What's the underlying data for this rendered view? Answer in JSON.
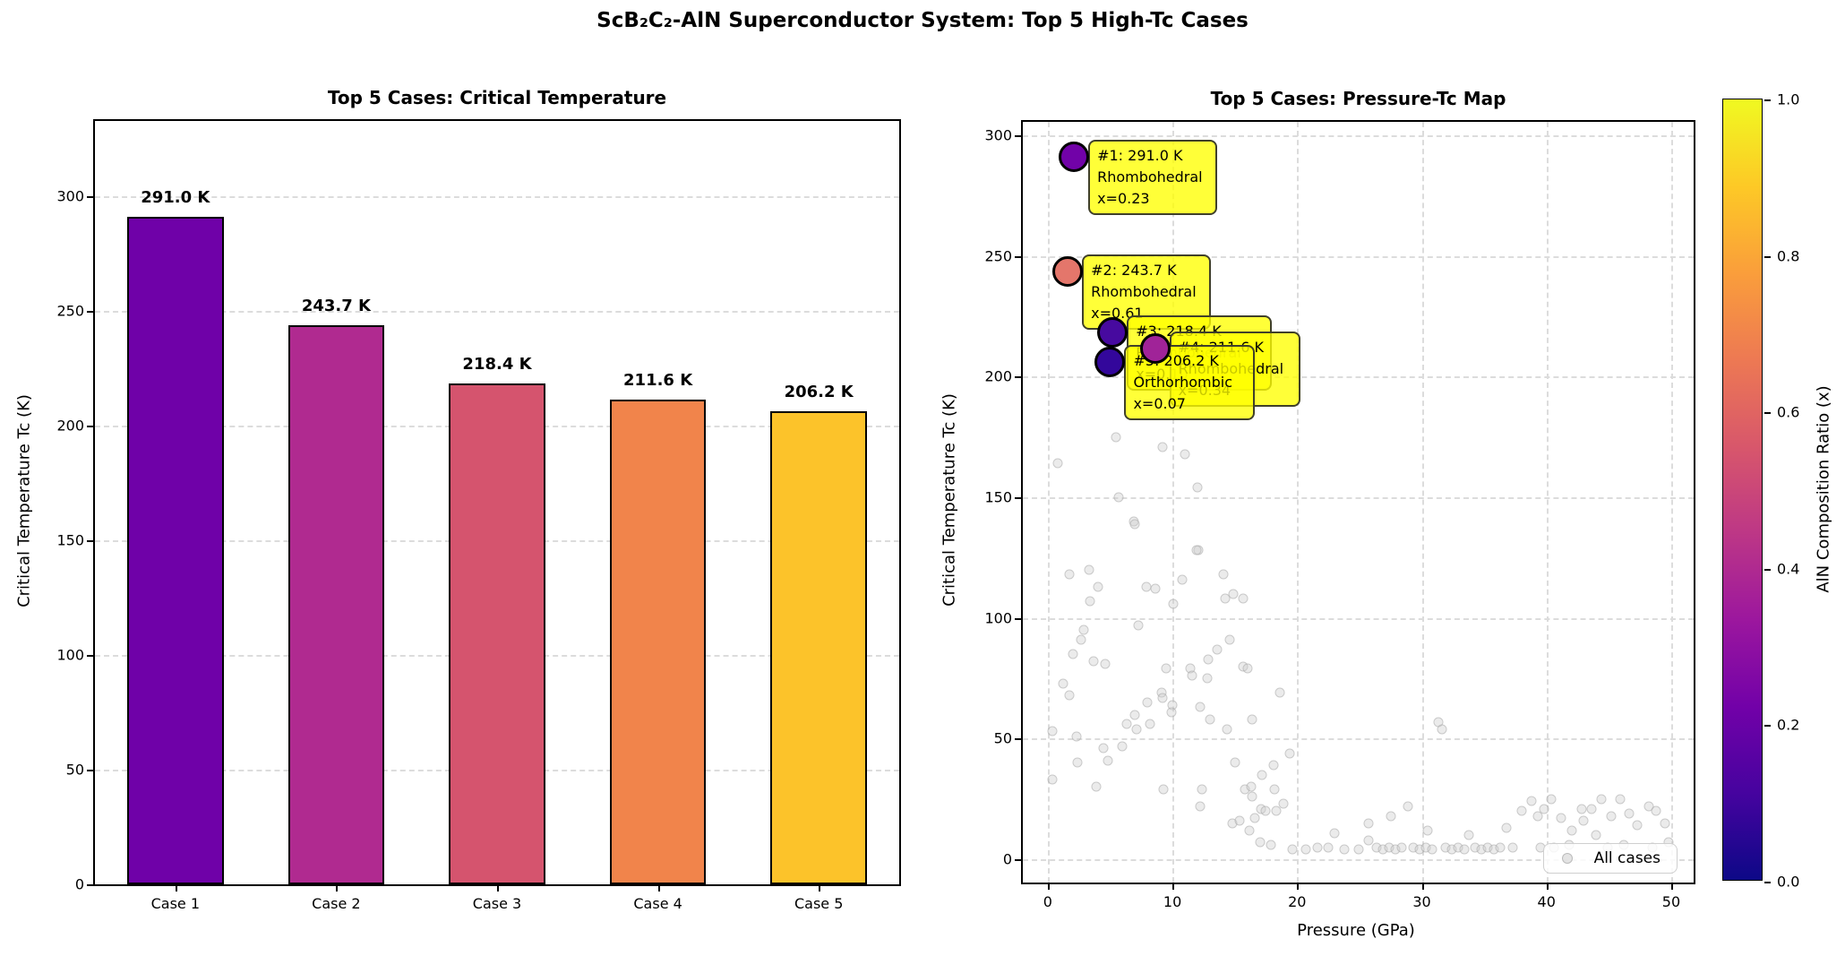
{
  "suptitle": "ScB₂C₂-AlN Superconductor System: Top 5 High-Tc Cases",
  "chart_data": [
    {
      "type": "bar",
      "title": "Top 5 Cases: Critical Temperature",
      "ylabel": "Critical Temperature Tc (K)",
      "categories": [
        "Case 1",
        "Case 2",
        "Case 3",
        "Case 4",
        "Case 5"
      ],
      "values": [
        291.0,
        243.7,
        218.4,
        211.6,
        206.2
      ],
      "value_labels": [
        "291.0 K",
        "243.7 K",
        "218.4 K",
        "211.6 K",
        "206.2 K"
      ],
      "bar_colors": [
        "#6f01a8",
        "#b02a90",
        "#d5546e",
        "#f1844b",
        "#fcc32a"
      ],
      "yticks": [
        0,
        50,
        100,
        150,
        200,
        250,
        300
      ],
      "ylim": [
        0,
        333
      ],
      "grid": "dashed horizontal"
    },
    {
      "type": "scatter",
      "title": "Top 5 Cases: Pressure-Tc Map",
      "xlabel": "Pressure (GPa)",
      "ylabel": "Critical Temperature Tc (K)",
      "xticks": [
        0,
        10,
        20,
        30,
        40,
        50
      ],
      "yticks": [
        0,
        50,
        100,
        150,
        200,
        250,
        300
      ],
      "xlim": [
        -2.0,
        51.8
      ],
      "ylim": [
        -9.6,
        305.6
      ],
      "grid": "dashed both",
      "legend": {
        "label": "All cases",
        "position": "lower right"
      },
      "highlights": [
        {
          "rank": 1,
          "pressure_gpa": 2.1,
          "tc_k": 291.0,
          "marker_color": "#7102a8",
          "annotation_lines": [
            "#1: 291.0 K",
            "Rhombohedral",
            "x=0.23"
          ]
        },
        {
          "rank": 2,
          "pressure_gpa": 1.6,
          "tc_k": 243.7,
          "marker_color": "#e4766b",
          "annotation_lines": [
            "#2: 243.7 K",
            "Rhombohedral",
            "x=0.61"
          ]
        },
        {
          "rank": 3,
          "pressure_gpa": 5.2,
          "tc_k": 218.4,
          "marker_color": "#470a9f",
          "annotation_lines": [
            "#3: 218.4 K",
            "Rhombohedral",
            "x=0.10"
          ]
        },
        {
          "rank": 4,
          "pressure_gpa": 8.6,
          "tc_k": 211.6,
          "marker_color": "#a02398",
          "annotation_lines": [
            "#4: 211.6 K",
            "Rhombohedral",
            "x=0.34"
          ]
        },
        {
          "rank": 5,
          "pressure_gpa": 5.0,
          "tc_k": 206.2,
          "marker_color": "#33079b",
          "annotation_lines": [
            "#5: 206.2 K",
            "Orthorhombic",
            "x=0.07"
          ]
        }
      ],
      "background_points": [
        [
          5.5,
          175
        ],
        [
          9.2,
          171
        ],
        [
          11.0,
          168
        ],
        [
          0.8,
          164
        ],
        [
          12.0,
          154
        ],
        [
          5.7,
          150
        ],
        [
          6.9,
          140
        ],
        [
          7.0,
          139
        ],
        [
          12.1,
          128
        ],
        [
          11.9,
          128
        ],
        [
          1.7,
          118
        ],
        [
          3.3,
          120
        ],
        [
          4.0,
          113
        ],
        [
          3.4,
          107
        ],
        [
          7.9,
          113
        ],
        [
          8.6,
          112
        ],
        [
          10.8,
          116
        ],
        [
          14.1,
          118
        ],
        [
          14.2,
          108
        ],
        [
          14.9,
          110
        ],
        [
          15.7,
          108
        ],
        [
          10.1,
          106
        ],
        [
          7.3,
          97
        ],
        [
          2.9,
          95
        ],
        [
          2.7,
          91
        ],
        [
          2.0,
          85
        ],
        [
          3.7,
          82
        ],
        [
          4.6,
          81
        ],
        [
          9.5,
          79
        ],
        [
          11.4,
          79
        ],
        [
          11.6,
          76
        ],
        [
          12.9,
          83
        ],
        [
          13.6,
          87
        ],
        [
          14.6,
          91
        ],
        [
          15.7,
          80
        ],
        [
          16.0,
          79
        ],
        [
          12.8,
          75
        ],
        [
          1.2,
          73
        ],
        [
          1.7,
          68
        ],
        [
          9.1,
          69
        ],
        [
          9.2,
          67
        ],
        [
          10.0,
          64
        ],
        [
          9.9,
          61
        ],
        [
          8.0,
          65
        ],
        [
          7.0,
          60
        ],
        [
          6.3,
          56
        ],
        [
          7.1,
          54
        ],
        [
          8.2,
          56
        ],
        [
          12.2,
          63
        ],
        [
          13.0,
          58
        ],
        [
          14.4,
          54
        ],
        [
          16.4,
          58
        ],
        [
          18.6,
          69
        ],
        [
          0.4,
          53
        ],
        [
          2.3,
          51
        ],
        [
          4.5,
          46
        ],
        [
          4.8,
          41
        ],
        [
          6.0,
          47
        ],
        [
          2.4,
          40
        ],
        [
          0.4,
          33
        ],
        [
          3.9,
          30
        ],
        [
          9.3,
          29
        ],
        [
          12.4,
          29
        ],
        [
          12.2,
          22
        ],
        [
          15.0,
          40
        ],
        [
          15.8,
          29
        ],
        [
          16.3,
          30
        ],
        [
          16.4,
          26
        ],
        [
          16.2,
          12
        ],
        [
          17.0,
          7
        ],
        [
          17.9,
          6
        ],
        [
          14.8,
          15
        ],
        [
          15.4,
          16
        ],
        [
          16.6,
          17
        ],
        [
          17.1,
          21
        ],
        [
          17.5,
          20
        ],
        [
          18.3,
          20
        ],
        [
          18.9,
          23
        ],
        [
          18.1,
          39
        ],
        [
          17.2,
          35
        ],
        [
          18.2,
          29
        ],
        [
          19.4,
          44
        ],
        [
          19.6,
          4
        ],
        [
          20.7,
          4
        ],
        [
          21.6,
          5
        ],
        [
          23.0,
          11
        ],
        [
          23.8,
          4
        ],
        [
          24.9,
          4
        ],
        [
          25.7,
          15
        ],
        [
          25.7,
          8
        ],
        [
          22.5,
          5
        ],
        [
          26.4,
          5
        ],
        [
          26.9,
          4
        ],
        [
          27.4,
          5
        ],
        [
          27.9,
          4
        ],
        [
          28.4,
          5
        ],
        [
          28.9,
          22
        ],
        [
          29.3,
          5
        ],
        [
          29.8,
          4
        ],
        [
          30.3,
          5
        ],
        [
          30.8,
          4
        ],
        [
          31.3,
          57
        ],
        [
          31.6,
          54
        ],
        [
          31.9,
          5
        ],
        [
          32.4,
          4
        ],
        [
          32.9,
          5
        ],
        [
          33.4,
          4
        ],
        [
          33.8,
          10
        ],
        [
          34.3,
          5
        ],
        [
          34.8,
          4
        ],
        [
          35.3,
          5
        ],
        [
          35.8,
          4
        ],
        [
          36.3,
          5
        ],
        [
          36.8,
          13
        ],
        [
          37.3,
          5
        ],
        [
          27.5,
          18
        ],
        [
          30.5,
          12
        ],
        [
          38.0,
          20
        ],
        [
          38.8,
          24
        ],
        [
          39.3,
          18
        ],
        [
          39.5,
          5
        ],
        [
          40.6,
          5
        ],
        [
          41.8,
          6
        ],
        [
          44.9,
          5
        ],
        [
          46.2,
          6
        ],
        [
          48.5,
          5
        ],
        [
          49.8,
          7
        ],
        [
          39.8,
          21
        ],
        [
          40.4,
          25
        ],
        [
          41.2,
          17
        ],
        [
          42.0,
          12
        ],
        [
          42.8,
          21
        ],
        [
          43.6,
          21
        ],
        [
          44.4,
          25
        ],
        [
          45.2,
          18
        ],
        [
          45.9,
          25
        ],
        [
          46.6,
          19
        ],
        [
          47.3,
          14
        ],
        [
          48.2,
          22
        ],
        [
          48.8,
          20
        ],
        [
          49.5,
          15
        ],
        [
          43.0,
          16
        ],
        [
          44.0,
          10
        ]
      ]
    }
  ],
  "colorbar": {
    "label": "AlN Composition Ratio (x)",
    "ticks": [
      "0.0",
      "0.2",
      "0.4",
      "0.6",
      "0.8",
      "1.0"
    ],
    "colormap": "plasma",
    "gradient_bottom_to_top": [
      "#0d0887",
      "#46039f",
      "#7201a8",
      "#9c179e",
      "#bd3786",
      "#d8576b",
      "#ed7953",
      "#fa9e3b",
      "#fdc926",
      "#f0f921"
    ]
  }
}
